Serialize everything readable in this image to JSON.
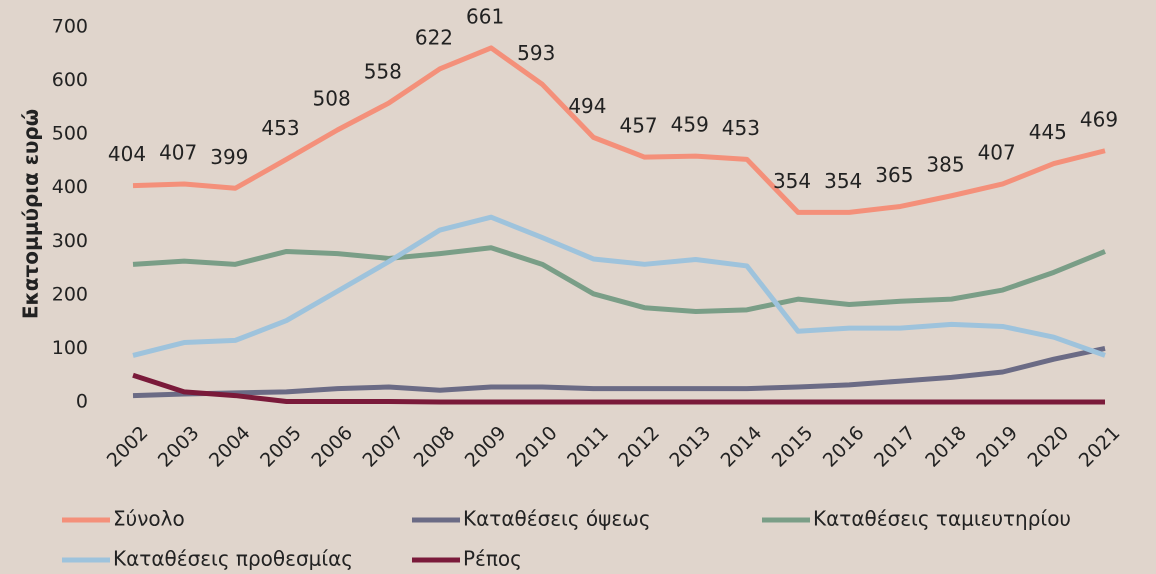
{
  "chart_data": {
    "type": "line",
    "y_label": "Εκατομμύρια ευρώ",
    "categories": [
      "2002",
      "2003",
      "2004",
      "2005",
      "2006",
      "2007",
      "2008",
      "2009",
      "2010",
      "2011",
      "2012",
      "2013",
      "2014",
      "2015",
      "2016",
      "2017",
      "2018",
      "2019",
      "2020",
      "2021"
    ],
    "ylim": [
      0,
      700
    ],
    "yticks": [
      0,
      100,
      200,
      300,
      400,
      500,
      600,
      700
    ],
    "grid": false,
    "series": [
      {
        "name": "Σύνολο",
        "color": "#f4907a",
        "values": [
          404,
          407,
          399,
          453,
          508,
          558,
          622,
          661,
          593,
          494,
          457,
          459,
          453,
          354,
          354,
          365,
          385,
          407,
          445,
          469
        ],
        "show_labels": true
      },
      {
        "name": "Καταθέσεις όψεως",
        "color": "#6b6b85",
        "values": [
          12,
          15,
          17,
          19,
          25,
          28,
          22,
          28,
          28,
          25,
          25,
          25,
          25,
          28,
          32,
          39,
          46,
          56,
          80,
          100
        ]
      },
      {
        "name": "Καταθέσεις ταμιευτηρίου",
        "color": "#7a9e87",
        "values": [
          257,
          263,
          257,
          281,
          277,
          268,
          277,
          288,
          257,
          202,
          176,
          169,
          172,
          192,
          182,
          188,
          192,
          209,
          242,
          281
        ]
      },
      {
        "name": "Καταθέσεις προθεσμίας",
        "color": "#9ec3dc",
        "values": [
          87,
          111,
          115,
          152,
          207,
          262,
          321,
          345,
          307,
          267,
          257,
          266,
          254,
          132,
          138,
          138,
          145,
          141,
          121,
          87
        ]
      },
      {
        "name": "Ρέπος",
        "color": "#7a1a3a",
        "values": [
          50,
          19,
          12,
          1,
          1,
          1,
          0,
          0,
          0,
          0,
          0,
          0,
          0,
          0,
          0,
          0,
          0,
          0,
          0,
          0
        ]
      }
    ]
  }
}
